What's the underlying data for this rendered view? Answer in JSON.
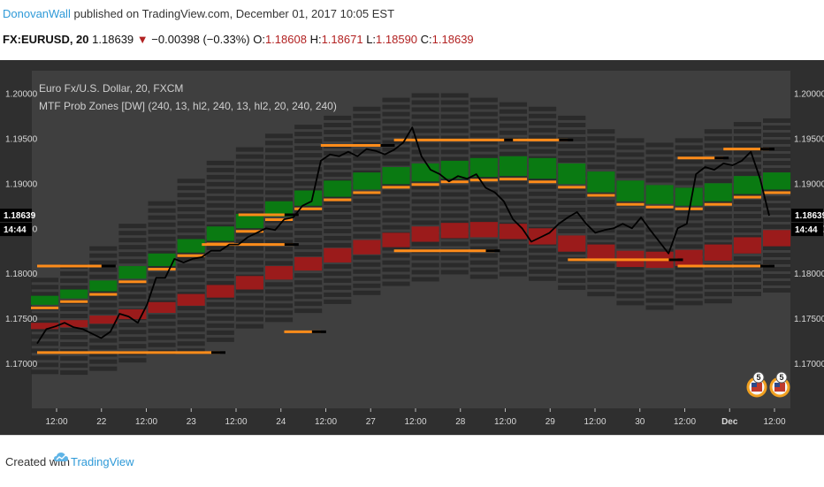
{
  "header": {
    "author": "DonovanWall",
    "published": "published on TradingView.com, December 01, 2017 10:05 EST"
  },
  "quote": {
    "symbol": "FX:EURUSD, 20",
    "last": "1.18639",
    "change": "−0.00398 (−0.33%)",
    "o_label": "O:",
    "o": "1.18608",
    "h_label": "H:",
    "h": "1.18671",
    "l_label": "L:",
    "l": "1.18590",
    "c_label": "C:",
    "c": "1.18639"
  },
  "footer": {
    "created_with": "Created with",
    "brand": "TradingView"
  },
  "colors": {
    "plot_bg": "#3f3f3f",
    "frame": "#2f2f2f",
    "price_line": "#000000",
    "prob_band": "#ff8c1a",
    "bull_zone": "#0a7a12",
    "bear_zone": "#9b1b1b",
    "outer_zone": "#2a2a2a",
    "price_tag_bg": "#000000",
    "badge_ring": "#f0a020"
  },
  "icons": {
    "candle": "price-line",
    "event_badge": "us-flag-event-icon",
    "logo": "tradingview-cloud-icon"
  },
  "chart_data": {
    "type": "line",
    "title": "Euro Fx/U.S. Dollar, 20, FXCM",
    "subtitle": "MTF Prob Zones [DW] (240, 13, hl2, 240, 13, hl2, 20, 240, 240)",
    "xlabel": "",
    "ylabel": "",
    "ylim": [
      1.165,
      1.2025
    ],
    "y_ticks": [
      "1.20000",
      "1.19500",
      "1.19000",
      "1.18500",
      "1.18000",
      "1.17500",
      "1.17000"
    ],
    "x_ticks": [
      "12:00",
      "22",
      "12:00",
      "23",
      "12:00",
      "24",
      "12:00",
      "27",
      "12:00",
      "28",
      "12:00",
      "29",
      "12:00",
      "30",
      "12:00",
      "Dec",
      "12:00"
    ],
    "last_price": "1.18639",
    "countdown": "14:44",
    "grid": false,
    "legend": "none",
    "event_badges": [
      {
        "label": "5"
      },
      {
        "label": "5"
      }
    ],
    "series": [
      {
        "name": "EURUSD",
        "x": [
          0,
          2,
          4,
          6,
          8,
          10,
          12,
          14,
          16,
          18,
          20,
          22,
          24,
          26,
          28,
          30,
          32,
          34,
          36,
          38,
          40,
          42,
          44,
          46,
          48,
          50,
          52,
          54,
          56,
          58,
          60,
          62,
          64,
          66,
          68,
          70,
          72,
          74,
          76,
          78,
          80,
          82,
          84,
          86,
          88,
          90,
          92,
          94,
          96,
          98,
          100,
          102,
          104,
          106,
          108,
          110,
          112,
          114,
          116,
          118,
          120,
          122,
          124,
          126,
          128,
          130,
          132,
          134,
          136,
          138,
          140,
          142,
          144,
          146,
          148,
          150,
          152,
          154,
          156,
          158,
          160
        ],
        "values": [
          1.1722,
          1.1738,
          1.1741,
          1.1745,
          1.174,
          1.1738,
          1.1733,
          1.1728,
          1.1735,
          1.1755,
          1.1752,
          1.1745,
          1.1765,
          1.1795,
          1.1795,
          1.1816,
          1.1812,
          1.1816,
          1.1818,
          1.1825,
          1.1825,
          1.1832,
          1.1832,
          1.184,
          1.1845,
          1.185,
          1.1848,
          1.186,
          1.1862,
          1.1875,
          1.188,
          1.1925,
          1.1932,
          1.193,
          1.1935,
          1.193,
          1.1938,
          1.1936,
          1.1932,
          1.1937,
          1.1945,
          1.1962,
          1.193,
          1.1915,
          1.191,
          1.1902,
          1.1908,
          1.1905,
          1.191,
          1.1895,
          1.189,
          1.188,
          1.186,
          1.185,
          1.1835,
          1.184,
          1.1845,
          1.1855,
          1.1862,
          1.1868,
          1.1855,
          1.1845,
          1.1848,
          1.185,
          1.1855,
          1.185,
          1.1862,
          1.1848,
          1.1835,
          1.1822,
          1.185,
          1.1855,
          1.191,
          1.1918,
          1.1915,
          1.1922,
          1.192,
          1.1925,
          1.1935,
          1.1905,
          1.1864
        ]
      }
    ],
    "zones": {
      "bull_upper": [
        1.1775,
        1.1782,
        1.1792,
        1.1808,
        1.1822,
        1.1838,
        1.1852,
        1.1866,
        1.188,
        1.1892,
        1.1903,
        1.1912,
        1.1918,
        1.1922,
        1.1925,
        1.1928,
        1.193,
        1.1928,
        1.1922,
        1.1913,
        1.1903,
        1.1898,
        1.1895,
        1.19,
        1.1908,
        1.1912
      ],
      "bull_lower": [
        1.1765,
        1.1772,
        1.178,
        1.1794,
        1.1808,
        1.1823,
        1.1836,
        1.185,
        1.1863,
        1.1875,
        1.1885,
        1.1893,
        1.1899,
        1.1902,
        1.1905,
        1.1907,
        1.1908,
        1.1905,
        1.1899,
        1.189,
        1.188,
        1.1877,
        1.1875,
        1.188,
        1.1888,
        1.1893
      ],
      "bear_upper": [
        1.1745,
        1.1748,
        1.1753,
        1.176,
        1.1768,
        1.1777,
        1.1787,
        1.1797,
        1.1808,
        1.1818,
        1.1828,
        1.1837,
        1.1845,
        1.1852,
        1.1856,
        1.1857,
        1.1855,
        1.185,
        1.1842,
        1.1832,
        1.1825,
        1.1824,
        1.1826,
        1.1832,
        1.184,
        1.1848
      ],
      "bear_lower": [
        1.1738,
        1.174,
        1.1744,
        1.1749,
        1.1756,
        1.1764,
        1.1773,
        1.1782,
        1.1793,
        1.1803,
        1.1812,
        1.1821,
        1.1829,
        1.1835,
        1.1839,
        1.184,
        1.1838,
        1.1832,
        1.1824,
        1.1814,
        1.1807,
        1.1806,
        1.1808,
        1.1814,
        1.1822,
        1.183
      ],
      "outer_upper": [
        1.1795,
        1.181,
        1.183,
        1.1855,
        1.188,
        1.1905,
        1.1925,
        1.194,
        1.1955,
        1.1965,
        1.1975,
        1.1985,
        1.1995,
        1.2,
        1.2,
        1.1995,
        1.199,
        1.1985,
        1.1975,
        1.196,
        1.195,
        1.1945,
        1.195,
        1.196,
        1.1968,
        1.1972
      ],
      "outer_lower": [
        1.169,
        1.1692,
        1.1695,
        1.17,
        1.1708,
        1.1716,
        1.1726,
        1.1736,
        1.1748,
        1.1758,
        1.1768,
        1.1778,
        1.1786,
        1.1792,
        1.1796,
        1.1798,
        1.1795,
        1.179,
        1.1782,
        1.1772,
        1.1764,
        1.1762,
        1.1763,
        1.1768,
        1.1775,
        1.1782
      ]
    },
    "prob_levels": [
      {
        "from": 0,
        "to": 16,
        "value": 1.1808
      },
      {
        "from": 0,
        "to": 40,
        "value": 1.1712
      },
      {
        "from": 36,
        "to": 56,
        "value": 1.1832
      },
      {
        "from": 44,
        "to": 56,
        "value": 1.1865
      },
      {
        "from": 54,
        "to": 62,
        "value": 1.1735
      },
      {
        "from": 62,
        "to": 77,
        "value": 1.1942
      },
      {
        "from": 78,
        "to": 104,
        "value": 1.1948
      },
      {
        "from": 78,
        "to": 100,
        "value": 1.1825
      },
      {
        "from": 104,
        "to": 116,
        "value": 1.1948
      },
      {
        "from": 116,
        "to": 140,
        "value": 1.1815
      },
      {
        "from": 140,
        "to": 150,
        "value": 1.1928
      },
      {
        "from": 150,
        "to": 160,
        "value": 1.1938
      },
      {
        "from": 140,
        "to": 160,
        "value": 1.1808
      }
    ]
  }
}
